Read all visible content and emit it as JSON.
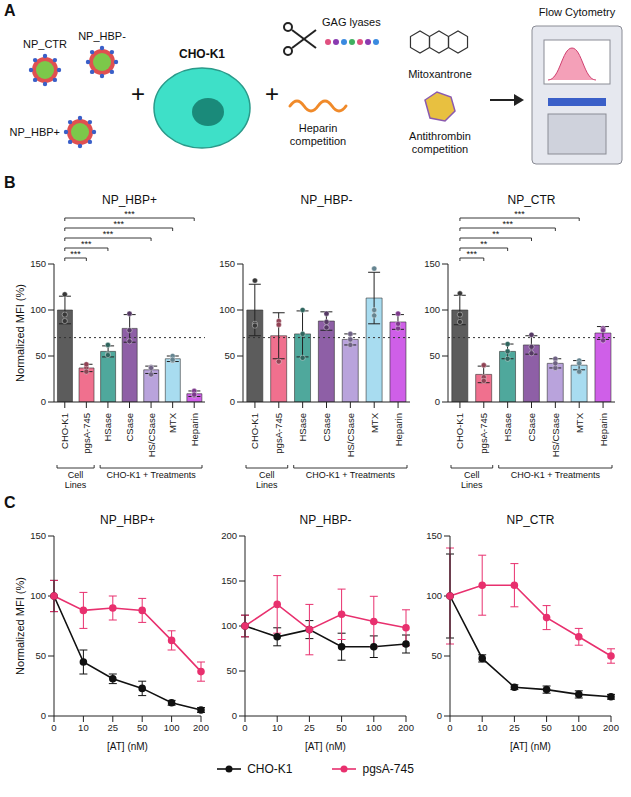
{
  "panel_letters": [
    "A",
    "B",
    "C"
  ],
  "diagram": {
    "nanoparticles": [
      "NP_CTR",
      "NP_HBP-",
      "NP_HBP+"
    ],
    "operators": [
      "+",
      "+"
    ],
    "cell": "CHO-K1",
    "treatments": [
      "GAG lyases",
      "Mitoxantrone",
      "Heparin competition",
      "Antithrombin competition"
    ],
    "readout": "Flow Cytometry"
  },
  "chart_data": [
    {
      "type": "bar",
      "title": "NP_HBP+",
      "ylabel": "Normalized MFI (%)",
      "categories": [
        "CHO-K1",
        "pgsA-745",
        "HSase",
        "CSase",
        "HS/CSase",
        "MTX",
        "Heparin"
      ],
      "values": [
        100,
        37,
        55,
        80,
        35,
        47,
        9
      ],
      "errors": [
        15,
        4,
        6,
        15,
        4,
        3,
        3
      ],
      "replicates": [
        [
          117,
          95,
          88
        ],
        [
          37,
          33,
          41
        ],
        [
          52,
          51,
          62
        ],
        [
          96,
          78,
          66
        ],
        [
          38,
          30,
          37
        ],
        [
          50,
          45,
          46
        ],
        [
          12,
          7,
          8
        ]
      ],
      "colors": [
        "#5c5c5c",
        "#f0708e",
        "#4fa89c",
        "#8e5fa6",
        "#b9a3dc",
        "#a8dcf0",
        "#cf5fe8"
      ],
      "ylim": [
        0,
        150
      ],
      "yticks": [
        0,
        50,
        100,
        150
      ],
      "threshold": 70,
      "groups": [
        {
          "label": "Cell Lines",
          "from": "CHO-K1",
          "to": "pgsA-745"
        },
        {
          "label": "CHO-K1 + Treatments",
          "from": "HSase",
          "to": "Heparin"
        }
      ],
      "significance": [
        {
          "from": "CHO-K1",
          "to": "pgsA-745",
          "label": "***"
        },
        {
          "from": "CHO-K1",
          "to": "HSase",
          "label": "***"
        },
        {
          "from": "CHO-K1",
          "to": "HS/CSase",
          "label": "***"
        },
        {
          "from": "CHO-K1",
          "to": "MTX",
          "label": "***"
        },
        {
          "from": "CHO-K1",
          "to": "Heparin",
          "label": "***"
        }
      ]
    },
    {
      "type": "bar",
      "title": "NP_HBP-",
      "categories": [
        "CHO-K1",
        "pgsA-745",
        "HSase",
        "CSase",
        "HS/CSase",
        "MTX",
        "Heparin"
      ],
      "values": [
        100,
        72,
        74,
        88,
        68,
        113,
        87
      ],
      "errors": [
        28,
        25,
        25,
        10,
        6,
        28,
        8
      ],
      "replicates": [
        [
          132,
          85,
          83
        ],
        [
          88,
          84,
          44
        ],
        [
          100,
          74,
          48
        ],
        [
          96,
          87,
          81
        ],
        [
          74,
          62,
          68
        ],
        [
          145,
          100,
          94
        ],
        [
          96,
          80,
          85
        ]
      ],
      "colors": [
        "#5c5c5c",
        "#f0708e",
        "#4fa89c",
        "#8e5fa6",
        "#b9a3dc",
        "#a8dcf0",
        "#cf5fe8"
      ],
      "ylim": [
        0,
        150
      ],
      "yticks": [
        0,
        50,
        100,
        150
      ],
      "threshold": 70,
      "groups": [
        {
          "label": "Cell Lines",
          "from": "CHO-K1",
          "to": "pgsA-745"
        },
        {
          "label": "CHO-K1 + Treatments",
          "from": "HSase",
          "to": "Heparin"
        }
      ]
    },
    {
      "type": "bar",
      "title": "NP_CTR",
      "categories": [
        "CHO-K1",
        "pgsA-745",
        "HSase",
        "CSase",
        "HS/CSase",
        "MTX",
        "Heparin"
      ],
      "values": [
        100,
        30,
        55,
        62,
        42,
        40,
        75
      ],
      "errors": [
        16,
        9,
        8,
        10,
        5,
        5,
        7
      ],
      "replicates": [
        [
          118,
          95,
          87
        ],
        [
          40,
          27,
          23
        ],
        [
          63,
          55,
          47
        ],
        [
          73,
          60,
          53
        ],
        [
          47,
          37,
          42
        ],
        [
          45,
          33,
          42
        ],
        [
          80,
          67,
          78
        ]
      ],
      "colors": [
        "#5c5c5c",
        "#f0708e",
        "#4fa89c",
        "#8e5fa6",
        "#b9a3dc",
        "#a8dcf0",
        "#cf5fe8"
      ],
      "ylim": [
        0,
        150
      ],
      "yticks": [
        0,
        50,
        100,
        150
      ],
      "threshold": 70,
      "groups": [
        {
          "label": "Cell Lines",
          "from": "CHO-K1",
          "to": "pgsA-745"
        },
        {
          "label": "CHO-K1 + Treatments",
          "from": "HSase",
          "to": "Heparin"
        }
      ],
      "significance": [
        {
          "from": "CHO-K1",
          "to": "pgsA-745",
          "label": "***"
        },
        {
          "from": "CHO-K1",
          "to": "HSase",
          "label": "**"
        },
        {
          "from": "CHO-K1",
          "to": "CSase",
          "label": "**"
        },
        {
          "from": "CHO-K1",
          "to": "HS/CSase",
          "label": "***"
        },
        {
          "from": "CHO-K1",
          "to": "MTX",
          "label": "***"
        }
      ]
    },
    {
      "type": "line",
      "title": "NP_HBP+",
      "ylabel": "Normalized MFI (%)",
      "xlabel": "[AT] (nM)",
      "categories": [
        0,
        10,
        25,
        50,
        100,
        200
      ],
      "ylim": [
        0,
        150
      ],
      "yticks": [
        0,
        50,
        100,
        150
      ],
      "legend": "bottom",
      "series": [
        {
          "name": "CHO-K1",
          "color": "#111111",
          "marker": "circle",
          "values": [
            100,
            45,
            31,
            23,
            11,
            5
          ],
          "errors": [
            13,
            10,
            4,
            6,
            2,
            2
          ]
        },
        {
          "name": "pgsA-745",
          "color": "#e8306e",
          "marker": "circle",
          "values": [
            100,
            88,
            90,
            88,
            63,
            37
          ],
          "errors": [
            13,
            15,
            10,
            10,
            8,
            8
          ]
        }
      ]
    },
    {
      "type": "line",
      "title": "NP_HBP-",
      "xlabel": "[AT] (nM)",
      "categories": [
        0,
        10,
        25,
        50,
        100,
        200
      ],
      "ylim": [
        0,
        200
      ],
      "yticks": [
        0,
        50,
        100,
        150,
        200
      ],
      "series": [
        {
          "name": "CHO-K1",
          "color": "#111111",
          "marker": "circle",
          "values": [
            100,
            88,
            96,
            77,
            77,
            80
          ],
          "errors": [
            12,
            10,
            10,
            15,
            12,
            10
          ]
        },
        {
          "name": "pgsA-745",
          "color": "#e8306e",
          "marker": "circle",
          "values": [
            100,
            124,
            96,
            113,
            105,
            98
          ],
          "errors": [
            12,
            32,
            28,
            28,
            28,
            20
          ]
        }
      ]
    },
    {
      "type": "line",
      "title": "NP_CTR",
      "xlabel": "[AT] (nM)",
      "categories": [
        0,
        10,
        25,
        50,
        100,
        200
      ],
      "ylim": [
        0,
        150
      ],
      "yticks": [
        0,
        50,
        100,
        150
      ],
      "series": [
        {
          "name": "CHO-K1",
          "color": "#111111",
          "marker": "circle",
          "values": [
            100,
            48,
            24,
            22,
            18,
            16
          ],
          "errors": [
            35,
            3,
            2,
            3,
            3,
            2
          ]
        },
        {
          "name": "pgsA-745",
          "color": "#e8306e",
          "marker": "circle",
          "values": [
            100,
            109,
            109,
            82,
            66,
            50
          ],
          "errors": [
            40,
            25,
            18,
            10,
            7,
            6
          ]
        }
      ]
    }
  ]
}
